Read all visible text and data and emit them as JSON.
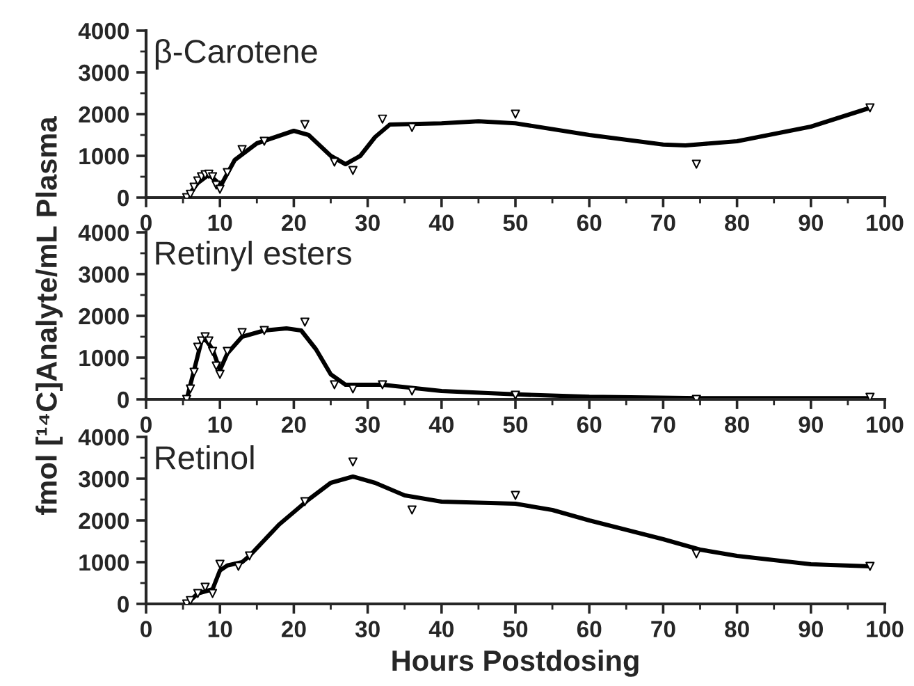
{
  "chart_data": [
    {
      "type": "scatter",
      "annotations": [
        "β-Carotene"
      ],
      "xlim": [
        0,
        100
      ],
      "xticks": [
        0,
        10,
        20,
        30,
        40,
        50,
        60,
        70,
        80,
        90,
        100
      ],
      "ylim": [
        0,
        4000
      ],
      "yticks": [
        0,
        1000,
        2000,
        3000,
        4000
      ],
      "grid": false,
      "legend": false,
      "series": [
        {
          "marker": "triangle",
          "color": "#000000",
          "x": [
            5.5,
            6,
            6.5,
            7,
            7.5,
            8,
            8.5,
            9,
            9.5,
            10,
            11,
            13,
            16,
            21.5,
            25.5,
            28,
            32,
            36,
            50,
            74.5,
            98
          ],
          "values": [
            0,
            80,
            250,
            400,
            500,
            550,
            560,
            500,
            300,
            200,
            600,
            1150,
            1350,
            1750,
            850,
            650,
            1880,
            1680,
            2000,
            800,
            2150
          ]
        },
        {
          "type": "line",
          "marker": "none",
          "line_style": "solid",
          "color": "#000000",
          "x": [
            5.5,
            7,
            8.5,
            9.5,
            10,
            12,
            15,
            20,
            22,
            25,
            27,
            29,
            31,
            33,
            40,
            45,
            50,
            60,
            70,
            73,
            80,
            90,
            98
          ],
          "values": [
            0,
            350,
            550,
            400,
            250,
            900,
            1300,
            1600,
            1500,
            1000,
            800,
            1000,
            1450,
            1750,
            1780,
            1830,
            1780,
            1500,
            1270,
            1250,
            1350,
            1700,
            2150
          ]
        }
      ]
    },
    {
      "type": "scatter",
      "annotations": [
        "Retinyl esters"
      ],
      "ylabel": "fmol [¹⁴C]Analyte/mL Plasma",
      "xlim": [
        0,
        100
      ],
      "xticks": [
        0,
        10,
        20,
        30,
        40,
        50,
        60,
        70,
        80,
        90,
        100
      ],
      "ylim": [
        0,
        4000
      ],
      "yticks": [
        0,
        1000,
        2000,
        3000,
        4000
      ],
      "grid": false,
      "legend": false,
      "series": [
        {
          "marker": "triangle",
          "color": "#000000",
          "x": [
            5.5,
            6,
            6.5,
            7,
            7.5,
            8,
            8.5,
            9,
            9.5,
            10,
            11,
            13,
            16,
            21.5,
            25.5,
            28,
            32,
            36,
            50,
            74.5,
            98
          ],
          "values": [
            0,
            250,
            650,
            1250,
            1400,
            1500,
            1400,
            1150,
            800,
            600,
            1150,
            1600,
            1650,
            1850,
            350,
            250,
            350,
            200,
            100,
            0,
            50
          ]
        },
        {
          "type": "line",
          "marker": "none",
          "line_style": "solid",
          "color": "#000000",
          "x": [
            5.5,
            6.5,
            7.5,
            8,
            9,
            10,
            11,
            13,
            16,
            19,
            21,
            23,
            25,
            27,
            32,
            40,
            50,
            60,
            75,
            98
          ],
          "values": [
            0,
            700,
            1400,
            1450,
            1200,
            700,
            1100,
            1500,
            1650,
            1700,
            1650,
            1200,
            600,
            350,
            350,
            200,
            120,
            60,
            30,
            30
          ]
        }
      ]
    },
    {
      "type": "scatter",
      "annotations": [
        "Retinol"
      ],
      "xlabel": "Hours Postdosing",
      "xlim": [
        0,
        100
      ],
      "xticks": [
        0,
        10,
        20,
        30,
        40,
        50,
        60,
        70,
        80,
        90,
        100
      ],
      "ylim": [
        0,
        4000
      ],
      "yticks": [
        0,
        1000,
        2000,
        3000,
        4000
      ],
      "grid": false,
      "legend": false,
      "series": [
        {
          "marker": "triangle",
          "color": "#000000",
          "x": [
            5.5,
            6,
            7,
            8,
            9,
            10,
            12.5,
            14,
            21.5,
            28,
            36,
            50,
            74.5,
            98
          ],
          "values": [
            0,
            80,
            250,
            400,
            250,
            950,
            900,
            1150,
            2450,
            3400,
            2250,
            2600,
            1200,
            900
          ]
        },
        {
          "type": "line",
          "marker": "none",
          "line_style": "solid",
          "color": "#000000",
          "x": [
            5.5,
            7,
            9,
            10,
            11,
            13,
            14,
            18,
            22,
            25,
            28,
            31,
            35,
            40,
            50,
            55,
            60,
            70,
            75,
            80,
            90,
            98
          ],
          "values": [
            0,
            250,
            350,
            800,
            920,
            1000,
            1150,
            1900,
            2500,
            2900,
            3050,
            2900,
            2600,
            2450,
            2400,
            2250,
            2000,
            1550,
            1300,
            1150,
            950,
            900
          ]
        }
      ]
    }
  ]
}
